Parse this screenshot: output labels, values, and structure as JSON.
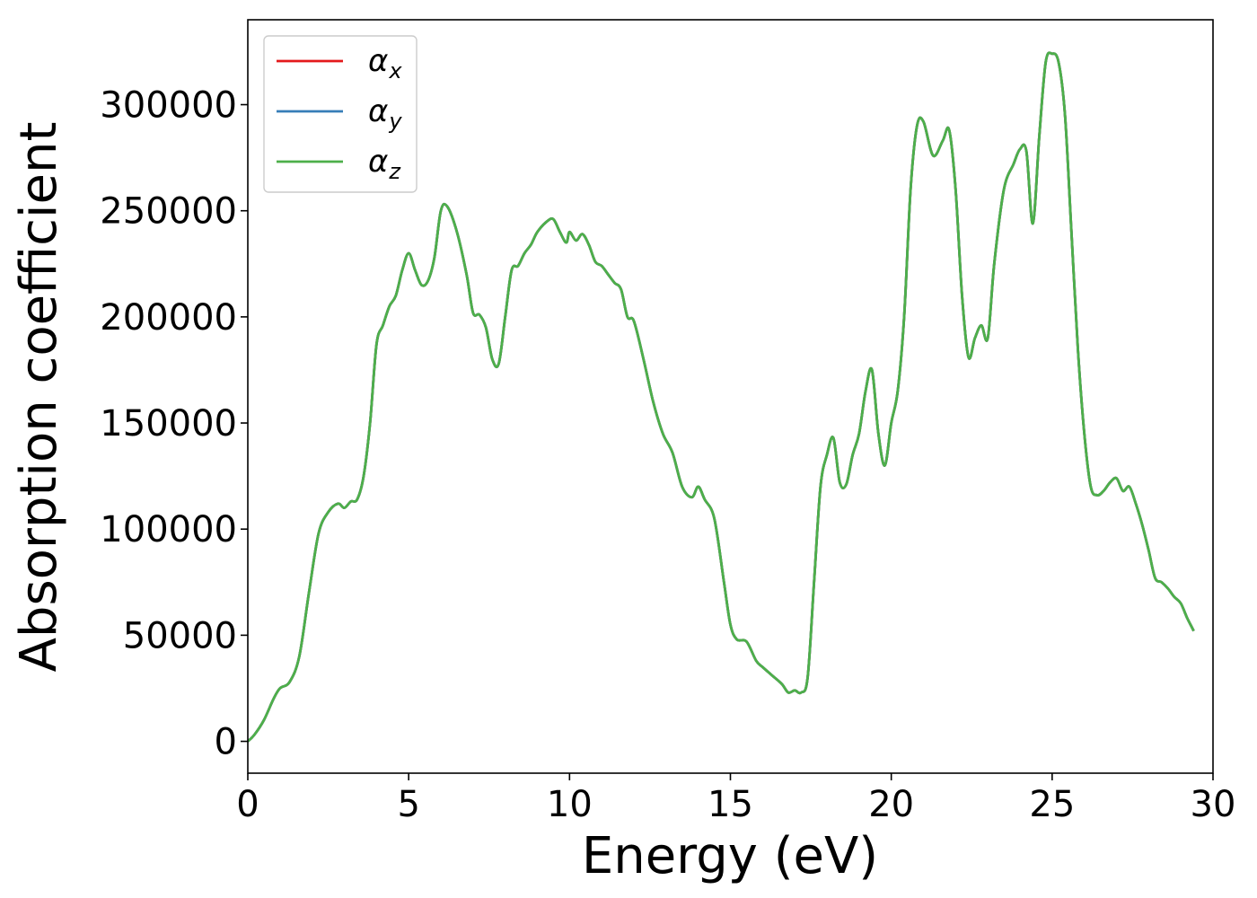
{
  "chart_data": {
    "type": "line",
    "title": "",
    "xlabel": "Energy (eV)",
    "ylabel": "Absorption coefficient",
    "xlim": [
      0,
      30
    ],
    "ylim": [
      -15000,
      340000
    ],
    "xticks": [
      0,
      5,
      10,
      15,
      20,
      25,
      30
    ],
    "xtick_labels": [
      "0",
      "5",
      "10",
      "15",
      "20",
      "25",
      "30"
    ],
    "yticks": [
      0,
      50000,
      100000,
      150000,
      200000,
      250000,
      300000
    ],
    "ytick_labels": [
      "0",
      "50000",
      "100000",
      "150000",
      "200000",
      "250000",
      "300000"
    ],
    "grid": false,
    "legend_position": "top-left",
    "x": [
      0,
      0.2,
      0.5,
      0.8,
      1.0,
      1.3,
      1.6,
      1.9,
      2.2,
      2.5,
      2.8,
      3.0,
      3.2,
      3.4,
      3.6,
      3.8,
      4.0,
      4.2,
      4.4,
      4.6,
      4.8,
      5.0,
      5.2,
      5.4,
      5.6,
      5.8,
      6.0,
      6.2,
      6.5,
      6.8,
      7.0,
      7.2,
      7.4,
      7.6,
      7.8,
      8.0,
      8.2,
      8.4,
      8.6,
      8.8,
      9.0,
      9.3,
      9.5,
      9.7,
      9.9,
      10.0,
      10.2,
      10.4,
      10.6,
      10.8,
      11.0,
      11.2,
      11.4,
      11.6,
      11.8,
      12.0,
      12.3,
      12.6,
      12.9,
      13.2,
      13.5,
      13.8,
      14.0,
      14.2,
      14.5,
      14.8,
      15.0,
      15.2,
      15.5,
      15.8,
      16.0,
      16.3,
      16.6,
      16.8,
      17.0,
      17.2,
      17.4,
      17.6,
      17.8,
      18.0,
      18.2,
      18.4,
      18.6,
      18.8,
      19.0,
      19.2,
      19.4,
      19.6,
      19.8,
      20.0,
      20.2,
      20.4,
      20.6,
      20.8,
      21.0,
      21.3,
      21.6,
      21.8,
      22.0,
      22.2,
      22.4,
      22.6,
      22.8,
      23.0,
      23.2,
      23.5,
      23.8,
      24.0,
      24.2,
      24.4,
      24.6,
      24.8,
      25.0,
      25.2,
      25.4,
      25.6,
      25.8,
      26.0,
      26.2,
      26.4,
      26.6,
      26.8,
      27.0,
      27.2,
      27.4,
      27.6,
      27.8,
      28.0,
      28.2,
      28.4,
      28.6,
      28.8,
      29.0,
      29.2,
      29.4,
      29.6,
      29.8,
      30.0
    ],
    "base_values": [
      0,
      3000,
      10000,
      20000,
      25000,
      28000,
      40000,
      70000,
      98000,
      108000,
      112000,
      110000,
      113000,
      114000,
      125000,
      150000,
      187000,
      196000,
      205000,
      210000,
      222000,
      230000,
      222000,
      215000,
      217000,
      228000,
      250000,
      252000,
      240000,
      220000,
      202000,
      201000,
      195000,
      180000,
      178000,
      200000,
      222000,
      224000,
      230000,
      234000,
      240000,
      245000,
      246000,
      240000,
      235000,
      240000,
      236000,
      239000,
      234000,
      226000,
      224000,
      220000,
      216000,
      213000,
      200000,
      198000,
      180000,
      160000,
      145000,
      136000,
      120000,
      115000,
      120000,
      114000,
      105000,
      75000,
      55000,
      48000,
      47000,
      38000,
      35000,
      31000,
      27000,
      23000,
      24000,
      23000,
      30000,
      75000,
      120000,
      135000,
      143000,
      122000,
      121000,
      135000,
      145000,
      165000,
      175000,
      145000,
      130000,
      150000,
      165000,
      200000,
      260000,
      290000,
      292000,
      276000,
      283000,
      288000,
      260000,
      210000,
      181000,
      190000,
      196000,
      190000,
      225000,
      260000,
      272000,
      279000,
      278000,
      244000,
      285000,
      320000,
      324000,
      320000,
      295000,
      240000,
      185000,
      145000,
      120000,
      116000,
      118000,
      122000,
      124000,
      118000,
      120000,
      112000,
      102000,
      90000,
      77000,
      75000,
      72000,
      68000,
      65000,
      58000,
      52000,
      45000
    ],
    "series": [
      {
        "name": "α",
        "subscript": "x",
        "color": "#e41a1c",
        "scale": 1.0
      },
      {
        "name": "α",
        "subscript": "y",
        "color": "#377eb8",
        "scale": 1.0
      },
      {
        "name": "α",
        "subscript": "z",
        "color": "#4daf4a",
        "scale": 1.0
      }
    ]
  }
}
